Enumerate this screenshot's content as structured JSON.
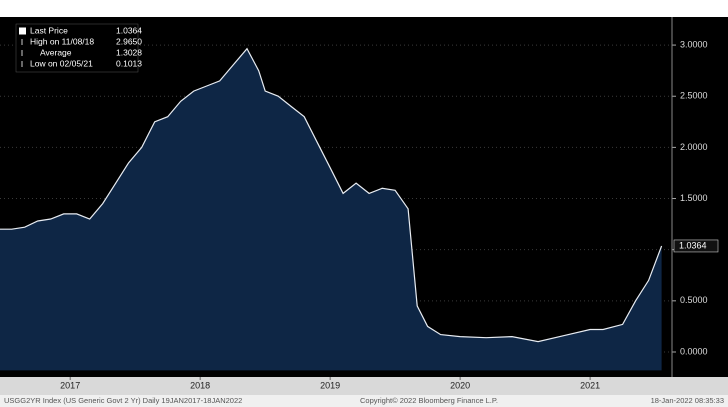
{
  "chart_data": {
    "type": "area",
    "legend": [
      {
        "label": "Last Price",
        "value": "1.0364"
      },
      {
        "label": "High on 11/08/18",
        "value": "2.9650"
      },
      {
        "label": "Average",
        "value": "1.3028"
      },
      {
        "label": "Low on 02/05/21",
        "value": "0.1013"
      }
    ],
    "last_label": "1.0364",
    "x": [
      2016.96,
      2017.05,
      2017.15,
      2017.25,
      2017.35,
      2017.45,
      2017.55,
      2017.65,
      2017.75,
      2017.85,
      2017.95,
      2018.05,
      2018.15,
      2018.25,
      2018.35,
      2018.45,
      2018.55,
      2018.65,
      2018.75,
      2018.86,
      2018.95,
      2019.0,
      2019.1,
      2019.2,
      2019.3,
      2019.4,
      2019.5,
      2019.6,
      2019.7,
      2019.8,
      2019.9,
      2020.0,
      2020.1,
      2020.17,
      2020.25,
      2020.35,
      2020.5,
      2020.7,
      2020.9,
      2021.1,
      2021.3,
      2021.5,
      2021.6,
      2021.75,
      2021.85,
      2021.95,
      2022.05
    ],
    "values": [
      1.2,
      1.2,
      1.22,
      1.28,
      1.3,
      1.35,
      1.35,
      1.3,
      1.45,
      1.65,
      1.85,
      2.0,
      2.25,
      2.3,
      2.45,
      2.55,
      2.6,
      2.65,
      2.8,
      2.965,
      2.75,
      2.55,
      2.5,
      2.4,
      2.3,
      2.05,
      1.8,
      1.55,
      1.65,
      1.55,
      1.6,
      1.58,
      1.4,
      0.45,
      0.25,
      0.17,
      0.15,
      0.14,
      0.15,
      0.1013,
      0.16,
      0.22,
      0.22,
      0.27,
      0.5,
      0.7,
      1.0364
    ],
    "color": "#0e2645",
    "line_color": "#e8ecf2",
    "xlim": [
      2016.96,
      2022.13
    ],
    "xticks": [
      {
        "value": 2017.5,
        "label": "2017"
      },
      {
        "value": 2018.5,
        "label": "2018"
      },
      {
        "value": 2019.5,
        "label": "2019"
      },
      {
        "value": 2020.5,
        "label": "2020"
      },
      {
        "value": 2021.5,
        "label": "2021"
      }
    ],
    "ylim": [
      -0.18,
      3.25
    ],
    "yticks": [
      {
        "value": 0,
        "label": "0.0000"
      },
      {
        "value": 0.5,
        "label": "0.5000"
      },
      {
        "value": 1,
        "label": "1.0000"
      },
      {
        "value": 1.5,
        "label": "1.5000"
      },
      {
        "value": 2,
        "label": "2.0000"
      },
      {
        "value": 2.5,
        "label": "2.5000"
      },
      {
        "value": 3,
        "label": "3.0000"
      }
    ],
    "grid": true,
    "footer": [
      "USGG2YR Index (US Generic Govt 2 Yr)  Daily 19JAN2017-18JAN2022",
      "Copyright© 2022 Bloomberg Finance L.P.",
      "18-Jan-2022 08:35:33"
    ]
  }
}
